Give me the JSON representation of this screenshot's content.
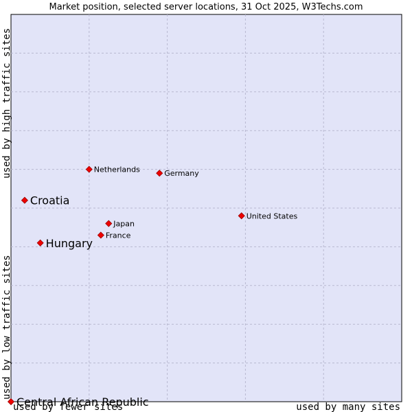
{
  "chart_data": {
    "type": "scatter",
    "title": "Market position, selected server locations, 31 Oct 2025, W3Techs.com",
    "x_axis": {
      "low_label": "used by fewer sites",
      "high_label": "used by many sites",
      "range": [
        0,
        10
      ]
    },
    "y_axis": {
      "low_label": "used by low traffic sites",
      "high_label": "used by high traffic sites",
      "range": [
        0,
        10
      ]
    },
    "grid": true,
    "colors": {
      "background": "#e2e4f8",
      "point": "#ee0000",
      "point_outline": "#990000",
      "grid": "#b8b8d0"
    },
    "points": [
      {
        "label": "Netherlands",
        "x": 2.0,
        "y": 6.0,
        "emphasis": false
      },
      {
        "label": "Germany",
        "x": 3.8,
        "y": 5.9,
        "emphasis": false
      },
      {
        "label": "Croatia",
        "x": 0.35,
        "y": 5.2,
        "emphasis": true
      },
      {
        "label": "United States",
        "x": 5.9,
        "y": 4.8,
        "emphasis": false
      },
      {
        "label": "Japan",
        "x": 2.5,
        "y": 4.6,
        "emphasis": false
      },
      {
        "label": "France",
        "x": 2.3,
        "y": 4.3,
        "emphasis": false
      },
      {
        "label": "Hungary",
        "x": 0.75,
        "y": 4.1,
        "emphasis": true
      },
      {
        "label": "Central African Republic",
        "x": 0.0,
        "y": 0.0,
        "emphasis": true
      }
    ]
  }
}
